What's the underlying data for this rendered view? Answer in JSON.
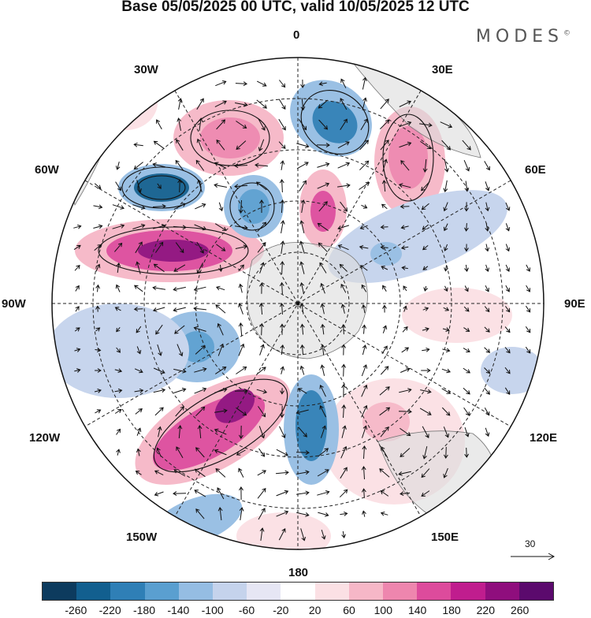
{
  "title": "Base 05/05/2025 00 UTC, valid 10/05/2025 12 UTC",
  "brand": "MODES",
  "brand_mark": "©",
  "longitude_labels": {
    "n0": "0",
    "e30": "30E",
    "e60": "60E",
    "e90": "90E",
    "e120": "120E",
    "e150": "150E",
    "s180": "180",
    "w150": "150W",
    "w120": "120W",
    "w90": "90W",
    "w60": "60W",
    "w30": "30W"
  },
  "reference_vector": {
    "value": "30"
  },
  "colorbar": {
    "colors": [
      "#0d3b5e",
      "#125f8f",
      "#2f7fb6",
      "#5a9fd0",
      "#95bde3",
      "#c5d3ec",
      "#e6e6f4",
      "#ffffff",
      "#fbe0e4",
      "#f6b7c7",
      "#ee86ae",
      "#dd4b9c",
      "#c01d8e",
      "#8f0e7d",
      "#5b0a6d"
    ],
    "ticks": [
      "-260",
      "-220",
      "-180",
      "-140",
      "-100",
      "-60",
      "-20",
      "20",
      "60",
      "100",
      "140",
      "180",
      "220",
      "260"
    ]
  }
}
